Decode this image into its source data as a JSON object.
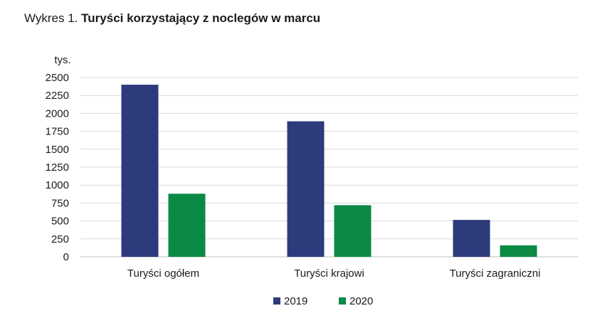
{
  "title": {
    "prefix": "Wykres 1.",
    "text": "Turyści korzystający z noclegów w marcu"
  },
  "chart_data": {
    "type": "bar",
    "title": "Wykres 1. Turyści korzystający z noclegów w marcu",
    "unit_label": "tys.",
    "categories": [
      "Turyści ogółem",
      "Turyści krajowi",
      "Turyści zagraniczni"
    ],
    "series": [
      {
        "name": "2019",
        "color": "#2d3a7b",
        "values": [
          2400,
          1890,
          515
        ]
      },
      {
        "name": "2020",
        "color": "#0a8a44",
        "values": [
          880,
          720,
          160
        ]
      }
    ],
    "ylim": [
      0,
      2500
    ],
    "yticks": [
      0,
      250,
      500,
      750,
      1000,
      1250,
      1500,
      1750,
      2000,
      2250,
      2500
    ],
    "grid": true,
    "legend_position": "bottom"
  }
}
